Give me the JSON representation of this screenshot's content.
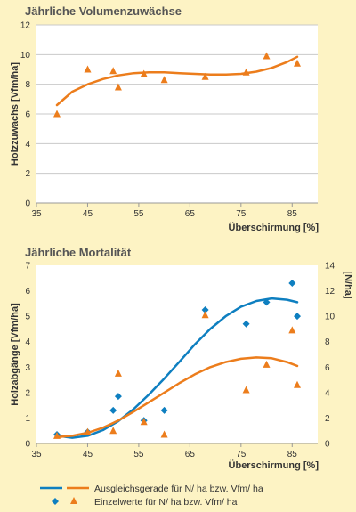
{
  "colors": {
    "background": "#fdf3c4",
    "plot_bg": "#ffffff",
    "grid": "#c9c9c9",
    "blue": "#0e7fc0",
    "orange": "#ec7d1c"
  },
  "legend": {
    "line_label": "Ausgleichsgerade für N/ ha bzw. Vfm/ ha",
    "point_label": "Einzelwerte für N/ ha bzw. Vfm/ ha"
  },
  "chart_data": [
    {
      "type": "scatter",
      "title": "Jährliche Volumenzuwächse",
      "ylabel": "Holzzuwachs [Vfm/ha]",
      "xlabel": "Überschirmung [%]",
      "xlim": [
        35,
        90
      ],
      "ylim": [
        0,
        12
      ],
      "xticks": [
        35,
        45,
        55,
        65,
        75,
        85
      ],
      "yticks": [
        0,
        2,
        4,
        6,
        8,
        10,
        12
      ],
      "grid": true,
      "series": [
        {
          "color": "#ec7d1c",
          "marker": "triangle",
          "x": [
            39,
            45,
            50,
            51,
            56,
            60,
            68,
            76,
            80,
            86
          ],
          "y": [
            6.0,
            9.0,
            8.9,
            7.8,
            8.7,
            8.3,
            8.5,
            8.8,
            9.9,
            9.4
          ],
          "fit_x": [
            39,
            42,
            45,
            48,
            51,
            54,
            57,
            60,
            63,
            66,
            69,
            72,
            75,
            78,
            81,
            84,
            86
          ],
          "fit_y": [
            6.6,
            7.5,
            8.0,
            8.35,
            8.6,
            8.75,
            8.8,
            8.8,
            8.75,
            8.7,
            8.65,
            8.65,
            8.7,
            8.85,
            9.1,
            9.5,
            9.85
          ]
        }
      ]
    },
    {
      "type": "scatter",
      "title": "Jährliche Mortalität",
      "ylabel": "Holzabgänge [Vfm/ha]",
      "y2label": "[N/ha]",
      "xlabel": "Überschirmung [%]",
      "xlim": [
        35,
        90
      ],
      "ylim": [
        0,
        7
      ],
      "y2lim": [
        0,
        14
      ],
      "xticks": [
        35,
        45,
        55,
        65,
        75,
        85
      ],
      "yticks": [
        0,
        1,
        2,
        3,
        4,
        5,
        6,
        7
      ],
      "y2ticks": [
        0,
        2,
        4,
        6,
        8,
        10,
        12,
        14
      ],
      "grid": false,
      "series": [
        {
          "color": "#0e7fc0",
          "marker": "diamond",
          "axis": "right",
          "x": [
            39,
            45,
            50,
            51,
            56,
            60,
            68,
            76,
            80,
            85,
            86
          ],
          "y": [
            0.7,
            0.9,
            2.6,
            3.7,
            1.8,
            2.6,
            10.5,
            9.4,
            11.1,
            12.6,
            10.0
          ],
          "fit_x": [
            39,
            42,
            45,
            48,
            51,
            54,
            57,
            60,
            63,
            66,
            69,
            72,
            75,
            78,
            81,
            84,
            86
          ],
          "fit_y": [
            0.6,
            0.45,
            0.6,
            1.05,
            1.75,
            2.7,
            3.85,
            5.1,
            6.45,
            7.8,
            9.0,
            10.0,
            10.75,
            11.2,
            11.4,
            11.3,
            11.1
          ]
        },
        {
          "color": "#ec7d1c",
          "marker": "triangle",
          "axis": "left",
          "x": [
            39,
            45,
            50,
            51,
            56,
            60,
            68,
            76,
            80,
            85,
            86
          ],
          "y": [
            0.3,
            0.45,
            0.5,
            2.75,
            0.85,
            0.35,
            5.05,
            2.1,
            3.1,
            4.45,
            2.3
          ],
          "fit_x": [
            39,
            42,
            45,
            48,
            51,
            54,
            57,
            60,
            63,
            66,
            69,
            72,
            75,
            78,
            81,
            84,
            86
          ],
          "fit_y": [
            0.25,
            0.3,
            0.42,
            0.62,
            0.9,
            1.25,
            1.62,
            2.0,
            2.38,
            2.72,
            3.0,
            3.2,
            3.33,
            3.38,
            3.35,
            3.2,
            3.05
          ]
        }
      ]
    }
  ]
}
